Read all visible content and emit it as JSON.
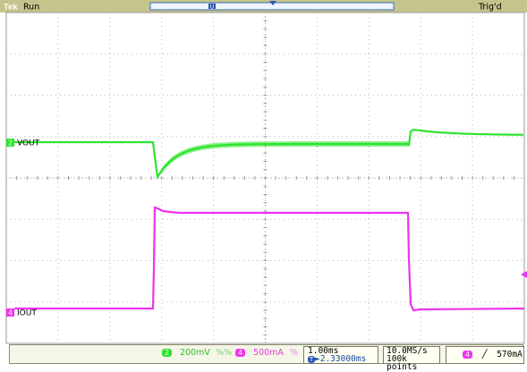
{
  "header": {
    "brand": "Tek",
    "run_state": "Run",
    "trigger_state": "Trig'd",
    "trigger_marker": "T",
    "record_marker": "U"
  },
  "channels": [
    {
      "id": "2",
      "label": "VOUT",
      "color": "#2ee32e",
      "scale": "200mV",
      "bandwidth": "%%"
    },
    {
      "id": "4",
      "label": "IOUT",
      "color": "#ee33ee",
      "scale": "500mA",
      "bandwidth": "%"
    }
  ],
  "timebase": {
    "scale": "1.00ms",
    "position": "►2.33000ms",
    "position_marker": "T"
  },
  "acquisition": {
    "sample_rate": "10.0MS/s",
    "record_length": "100k points"
  },
  "trigger": {
    "channel": "4",
    "slope_icon": "rising-edge",
    "level": "570mA"
  },
  "grid": {
    "divisions_x": 10,
    "divisions_y": 8
  }
}
